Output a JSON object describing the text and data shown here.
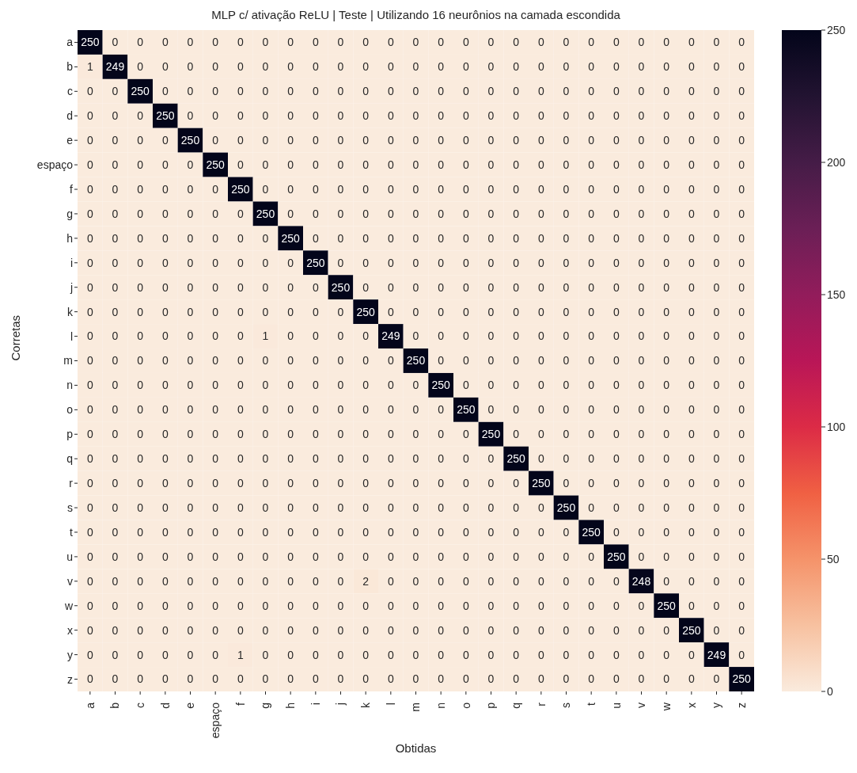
{
  "chart_data": {
    "type": "heatmap",
    "title": "MLP c/ ativação ReLU | Teste | Utilizando 16 neurônios na camada escondida",
    "xlabel": "Obtidas",
    "ylabel": "Corretas",
    "categories": [
      "a",
      "b",
      "c",
      "d",
      "e",
      "espaço",
      "f",
      "g",
      "h",
      "i",
      "j",
      "k",
      "l",
      "m",
      "n",
      "o",
      "p",
      "q",
      "r",
      "s",
      "t",
      "u",
      "v",
      "w",
      "x",
      "y",
      "z"
    ],
    "y_categories": [
      "a",
      "b",
      "c",
      "d",
      "e",
      "espaço",
      "f",
      "g",
      "h",
      "i",
      "j",
      "k",
      "l",
      "m",
      "n",
      "o",
      "p",
      "q",
      "r",
      "s",
      "t",
      "u",
      "v",
      "w",
      "x",
      "y",
      "z"
    ],
    "cells": [
      [
        250,
        0,
        0,
        0,
        0,
        0,
        0,
        0,
        0,
        0,
        0,
        0,
        0,
        0,
        0,
        0,
        0,
        0,
        0,
        0,
        0,
        0,
        0,
        0,
        0,
        0,
        0
      ],
      [
        1,
        249,
        0,
        0,
        0,
        0,
        0,
        0,
        0,
        0,
        0,
        0,
        0,
        0,
        0,
        0,
        0,
        0,
        0,
        0,
        0,
        0,
        0,
        0,
        0,
        0,
        0
      ],
      [
        0,
        0,
        250,
        0,
        0,
        0,
        0,
        0,
        0,
        0,
        0,
        0,
        0,
        0,
        0,
        0,
        0,
        0,
        0,
        0,
        0,
        0,
        0,
        0,
        0,
        0,
        0
      ],
      [
        0,
        0,
        0,
        250,
        0,
        0,
        0,
        0,
        0,
        0,
        0,
        0,
        0,
        0,
        0,
        0,
        0,
        0,
        0,
        0,
        0,
        0,
        0,
        0,
        0,
        0,
        0
      ],
      [
        0,
        0,
        0,
        0,
        250,
        0,
        0,
        0,
        0,
        0,
        0,
        0,
        0,
        0,
        0,
        0,
        0,
        0,
        0,
        0,
        0,
        0,
        0,
        0,
        0,
        0,
        0
      ],
      [
        0,
        0,
        0,
        0,
        0,
        250,
        0,
        0,
        0,
        0,
        0,
        0,
        0,
        0,
        0,
        0,
        0,
        0,
        0,
        0,
        0,
        0,
        0,
        0,
        0,
        0,
        0
      ],
      [
        0,
        0,
        0,
        0,
        0,
        0,
        250,
        0,
        0,
        0,
        0,
        0,
        0,
        0,
        0,
        0,
        0,
        0,
        0,
        0,
        0,
        0,
        0,
        0,
        0,
        0,
        0
      ],
      [
        0,
        0,
        0,
        0,
        0,
        0,
        0,
        250,
        0,
        0,
        0,
        0,
        0,
        0,
        0,
        0,
        0,
        0,
        0,
        0,
        0,
        0,
        0,
        0,
        0,
        0,
        0
      ],
      [
        0,
        0,
        0,
        0,
        0,
        0,
        0,
        0,
        250,
        0,
        0,
        0,
        0,
        0,
        0,
        0,
        0,
        0,
        0,
        0,
        0,
        0,
        0,
        0,
        0,
        0,
        0
      ],
      [
        0,
        0,
        0,
        0,
        0,
        0,
        0,
        0,
        0,
        250,
        0,
        0,
        0,
        0,
        0,
        0,
        0,
        0,
        0,
        0,
        0,
        0,
        0,
        0,
        0,
        0,
        0
      ],
      [
        0,
        0,
        0,
        0,
        0,
        0,
        0,
        0,
        0,
        0,
        250,
        0,
        0,
        0,
        0,
        0,
        0,
        0,
        0,
        0,
        0,
        0,
        0,
        0,
        0,
        0,
        0
      ],
      [
        0,
        0,
        0,
        0,
        0,
        0,
        0,
        0,
        0,
        0,
        0,
        250,
        0,
        0,
        0,
        0,
        0,
        0,
        0,
        0,
        0,
        0,
        0,
        0,
        0,
        0,
        0
      ],
      [
        0,
        0,
        0,
        0,
        0,
        0,
        0,
        1,
        0,
        0,
        0,
        0,
        249,
        0,
        0,
        0,
        0,
        0,
        0,
        0,
        0,
        0,
        0,
        0,
        0,
        0,
        0
      ],
      [
        0,
        0,
        0,
        0,
        0,
        0,
        0,
        0,
        0,
        0,
        0,
        0,
        0,
        250,
        0,
        0,
        0,
        0,
        0,
        0,
        0,
        0,
        0,
        0,
        0,
        0,
        0
      ],
      [
        0,
        0,
        0,
        0,
        0,
        0,
        0,
        0,
        0,
        0,
        0,
        0,
        0,
        0,
        250,
        0,
        0,
        0,
        0,
        0,
        0,
        0,
        0,
        0,
        0,
        0,
        0
      ],
      [
        0,
        0,
        0,
        0,
        0,
        0,
        0,
        0,
        0,
        0,
        0,
        0,
        0,
        0,
        0,
        250,
        0,
        0,
        0,
        0,
        0,
        0,
        0,
        0,
        0,
        0,
        0
      ],
      [
        0,
        0,
        0,
        0,
        0,
        0,
        0,
        0,
        0,
        0,
        0,
        0,
        0,
        0,
        0,
        0,
        250,
        0,
        0,
        0,
        0,
        0,
        0,
        0,
        0,
        0,
        0
      ],
      [
        0,
        0,
        0,
        0,
        0,
        0,
        0,
        0,
        0,
        0,
        0,
        0,
        0,
        0,
        0,
        0,
        0,
        250,
        0,
        0,
        0,
        0,
        0,
        0,
        0,
        0,
        0
      ],
      [
        0,
        0,
        0,
        0,
        0,
        0,
        0,
        0,
        0,
        0,
        0,
        0,
        0,
        0,
        0,
        0,
        0,
        0,
        250,
        0,
        0,
        0,
        0,
        0,
        0,
        0,
        0
      ],
      [
        0,
        0,
        0,
        0,
        0,
        0,
        0,
        0,
        0,
        0,
        0,
        0,
        0,
        0,
        0,
        0,
        0,
        0,
        0,
        250,
        0,
        0,
        0,
        0,
        0,
        0,
        0
      ],
      [
        0,
        0,
        0,
        0,
        0,
        0,
        0,
        0,
        0,
        0,
        0,
        0,
        0,
        0,
        0,
        0,
        0,
        0,
        0,
        0,
        250,
        0,
        0,
        0,
        0,
        0,
        0
      ],
      [
        0,
        0,
        0,
        0,
        0,
        0,
        0,
        0,
        0,
        0,
        0,
        0,
        0,
        0,
        0,
        0,
        0,
        0,
        0,
        0,
        0,
        250,
        0,
        0,
        0,
        0,
        0
      ],
      [
        0,
        0,
        0,
        0,
        0,
        0,
        0,
        0,
        0,
        0,
        0,
        2,
        0,
        0,
        0,
        0,
        0,
        0,
        0,
        0,
        0,
        0,
        248,
        0,
        0,
        0,
        0
      ],
      [
        0,
        0,
        0,
        0,
        0,
        0,
        0,
        0,
        0,
        0,
        0,
        0,
        0,
        0,
        0,
        0,
        0,
        0,
        0,
        0,
        0,
        0,
        0,
        250,
        0,
        0,
        0
      ],
      [
        0,
        0,
        0,
        0,
        0,
        0,
        0,
        0,
        0,
        0,
        0,
        0,
        0,
        0,
        0,
        0,
        0,
        0,
        0,
        0,
        0,
        0,
        0,
        0,
        250,
        0,
        0
      ],
      [
        0,
        0,
        0,
        0,
        0,
        0,
        1,
        0,
        0,
        0,
        0,
        0,
        0,
        0,
        0,
        0,
        0,
        0,
        0,
        0,
        0,
        0,
        0,
        0,
        0,
        249,
        0
      ],
      [
        0,
        0,
        0,
        0,
        0,
        0,
        0,
        0,
        0,
        0,
        0,
        0,
        0,
        0,
        0,
        0,
        0,
        0,
        0,
        0,
        0,
        0,
        0,
        0,
        0,
        0,
        250
      ]
    ],
    "data_labels": true,
    "clim": [
      0,
      250
    ],
    "cticks": [
      0,
      50,
      100,
      150,
      200,
      250
    ]
  }
}
